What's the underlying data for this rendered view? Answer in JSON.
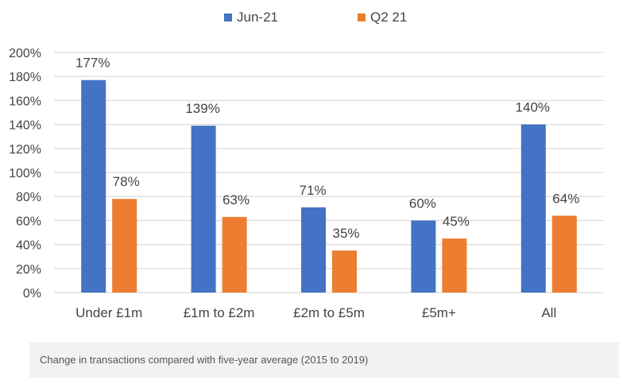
{
  "chart_data": {
    "type": "bar",
    "categories": [
      "Under £1m",
      "£1m to £2m",
      "£2m to £5m",
      "£5m+",
      "All"
    ],
    "series": [
      {
        "name": "Jun-21",
        "values": [
          177,
          139,
          71,
          60,
          140
        ],
        "labels": [
          "177%",
          "139%",
          "71%",
          "60%",
          "140%"
        ],
        "color": "#4472C4"
      },
      {
        "name": "Q2 21",
        "values": [
          78,
          63,
          35,
          45,
          64
        ],
        "labels": [
          "78%",
          "63%",
          "35%",
          "45%",
          "64%"
        ],
        "color": "#ED7D31"
      }
    ],
    "ylim": [
      0,
      200
    ],
    "yticks": [
      0,
      20,
      40,
      60,
      80,
      100,
      120,
      140,
      160,
      180,
      200
    ],
    "ytick_labels": [
      "0%",
      "20%",
      "40%",
      "60%",
      "80%",
      "100%",
      "120%",
      "140%",
      "160%",
      "180%",
      "200%"
    ],
    "grid": true,
    "legend_position": "top-center",
    "gridline_color": "#d9d9d9"
  },
  "caption": "Change in transactions compared with five-year average (2015 to 2019)"
}
